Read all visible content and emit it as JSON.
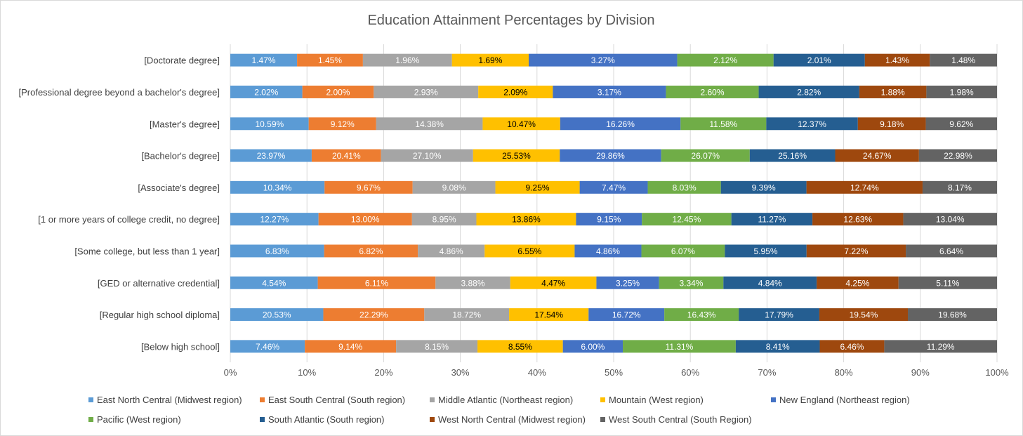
{
  "chart_data": {
    "type": "bar",
    "orientation": "horizontal",
    "stacking": "percent",
    "title": "Education Attainment Percentages by Division",
    "categories": [
      "[Doctorate degree]",
      "[Professional degree beyond a bachelor's degree]",
      "[Master's degree]",
      "[Bachelor's degree]",
      "[Associate's degree]",
      "[1 or more years of college credit, no degree]",
      "[Some college, but less than 1 year]",
      "[GED or alternative credential]",
      "[Regular high school diploma]",
      "[Below high school]"
    ],
    "series": [
      {
        "name": "East North Central (Midwest region)",
        "color": "#5B9BD5",
        "label_color": "#ffffff",
        "values": [
          1.47,
          2.02,
          10.59,
          23.97,
          10.34,
          12.27,
          6.83,
          4.54,
          20.53,
          7.46
        ],
        "labels": [
          "1.47%",
          "2.02%",
          "10.59%",
          "23.97%",
          "10.34%",
          "12.27%",
          "6.83%",
          "4.54%",
          "20.53%",
          "7.46%"
        ]
      },
      {
        "name": "East South Central (South region)",
        "color": "#ED7D31",
        "label_color": "#ffffff",
        "values": [
          1.45,
          2.0,
          9.12,
          20.41,
          9.67,
          13.0,
          6.82,
          6.11,
          22.29,
          9.14
        ],
        "labels": [
          "1.45%",
          "2.00%",
          "9.12%",
          "20.41%",
          "9.67%",
          "13.00%",
          "6.82%",
          "6.11%",
          "22.29%",
          "9.14%"
        ]
      },
      {
        "name": "Middle Atlantic (Northeast region)",
        "color": "#A5A5A5",
        "label_color": "#ffffff",
        "values": [
          1.96,
          2.93,
          14.38,
          27.1,
          9.08,
          8.95,
          4.86,
          3.88,
          18.72,
          8.15
        ],
        "labels": [
          "1.96%",
          "2.93%",
          "14.38%",
          "27.10%",
          "9.08%",
          "8.95%",
          "4.86%",
          "3.88%",
          "18.72%",
          "8.15%"
        ]
      },
      {
        "name": "Mountain (West region)",
        "color": "#FFC000",
        "label_color": "#000000",
        "values": [
          1.69,
          2.09,
          10.47,
          25.53,
          9.25,
          13.86,
          6.55,
          4.47,
          17.54,
          8.55
        ],
        "labels": [
          "1.69%",
          "2.09%",
          "10.47%",
          "25.53%",
          "9.25%",
          "13.86%",
          "6.55%",
          "4.47%",
          "17.54%",
          "8.55%"
        ]
      },
      {
        "name": "New England (Northeast region)",
        "color": "#4472C4",
        "label_color": "#ffffff",
        "values": [
          3.27,
          3.17,
          16.26,
          29.86,
          7.47,
          9.15,
          4.86,
          3.25,
          16.72,
          6.0
        ],
        "labels": [
          "3.27%",
          "3.17%",
          "16.26%",
          "29.86%",
          "7.47%",
          "9.15%",
          "4.86%",
          "3.25%",
          "16.72%",
          "6.00%"
        ]
      },
      {
        "name": "Pacific (West region)",
        "color": "#70AD47",
        "label_color": "#ffffff",
        "values": [
          2.12,
          2.6,
          11.58,
          26.07,
          8.03,
          12.45,
          6.07,
          3.34,
          16.43,
          11.31
        ],
        "labels": [
          "2.12%",
          "2.60%",
          "11.58%",
          "26.07%",
          "8.03%",
          "12.45%",
          "6.07%",
          "3.34%",
          "16.43%",
          "11.31%"
        ]
      },
      {
        "name": "South Atlantic (South region)",
        "color": "#255E91",
        "label_color": "#ffffff",
        "values": [
          2.01,
          2.82,
          12.37,
          25.16,
          9.39,
          11.27,
          5.95,
          4.84,
          17.79,
          8.41
        ],
        "labels": [
          "2.01%",
          "2.82%",
          "12.37%",
          "25.16%",
          "9.39%",
          "11.27%",
          "5.95%",
          "4.84%",
          "17.79%",
          "8.41%"
        ]
      },
      {
        "name": "West North Central (Midwest region)",
        "color": "#9E480E",
        "label_color": "#ffffff",
        "values": [
          1.43,
          1.88,
          9.18,
          24.67,
          12.74,
          12.63,
          7.22,
          4.25,
          19.54,
          6.46
        ],
        "labels": [
          "1.43%",
          "1.88%",
          "9.18%",
          "24.67%",
          "12.74%",
          "12.63%",
          "7.22%",
          "4.25%",
          "19.54%",
          "6.46%"
        ]
      },
      {
        "name": "West South Central (South Region)",
        "color": "#636363",
        "label_color": "#ffffff",
        "values": [
          1.48,
          1.98,
          9.62,
          22.98,
          8.17,
          13.04,
          6.64,
          5.11,
          19.68,
          11.29
        ],
        "labels": [
          "1.48%",
          "1.98%",
          "9.62%",
          "22.98%",
          "8.17%",
          "13.04%",
          "6.64%",
          "5.11%",
          "19.68%",
          "11.29%"
        ]
      }
    ],
    "x_ticks": [
      "0%",
      "10%",
      "20%",
      "30%",
      "40%",
      "50%",
      "60%",
      "70%",
      "80%",
      "90%",
      "100%"
    ],
    "xlim": [
      0,
      100
    ],
    "grid": true,
    "legend_position": "bottom"
  }
}
